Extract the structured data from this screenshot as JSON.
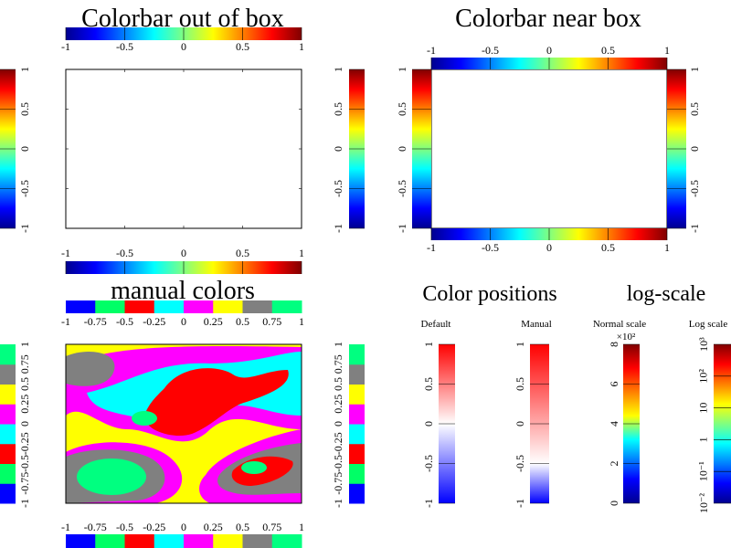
{
  "chart_data": [
    {
      "type": "colorbar",
      "title": "Colorbar out of box",
      "colormap": "jet",
      "range": [
        -1,
        1
      ],
      "ticks": [
        "-1",
        "-0.5",
        "0",
        "0.5",
        "1"
      ],
      "colorbars": [
        "top",
        "bottom",
        "left",
        "right"
      ]
    },
    {
      "type": "colorbar",
      "title": "Colorbar near box",
      "colormap": "jet",
      "range": [
        -1,
        1
      ],
      "ticks": [
        "-1",
        "-0.5",
        "0",
        "0.5",
        "1"
      ],
      "colorbars": [
        "top",
        "bottom",
        "left",
        "right"
      ]
    },
    {
      "type": "heatmap",
      "title": "manual colors",
      "range": [
        -1,
        1
      ],
      "levels": [
        "#0000ff",
        "#00ff66",
        "#ff0000",
        "#00ffff",
        "#ff00ff",
        "#ffff00",
        "#808080",
        "#00ff80"
      ],
      "ticks": [
        "-1",
        "-0.75",
        "-0.5",
        "-0.25",
        "0",
        "0.25",
        "0.5",
        "0.75",
        "1"
      ],
      "colorbars": [
        "top",
        "bottom",
        "left",
        "right"
      ]
    },
    {
      "type": "colorbar",
      "title": "Color positions",
      "panels": [
        {
          "label": "Default",
          "ticks": [
            "-1",
            "-0.5",
            "0",
            "0.5",
            "1"
          ],
          "colors": [
            "#0000ff",
            "#ffffff",
            "#ff0000"
          ]
        },
        {
          "label": "Manual",
          "ticks": [
            "-1",
            "-0.5",
            "0",
            "0.5",
            "1"
          ],
          "colors": [
            "#0000ff",
            "#ffffff",
            "#ff0000"
          ]
        }
      ]
    },
    {
      "type": "colorbar",
      "title": "log-scale",
      "panels": [
        {
          "label": "Normal scale",
          "ticks": [
            "0",
            "2",
            "4",
            "6",
            "8"
          ],
          "multiplier": "×10²"
        },
        {
          "label": "Log scale",
          "ticks": [
            "10⁻²",
            "10⁻¹",
            "1",
            "10",
            "10²",
            "10³"
          ]
        }
      ]
    }
  ]
}
